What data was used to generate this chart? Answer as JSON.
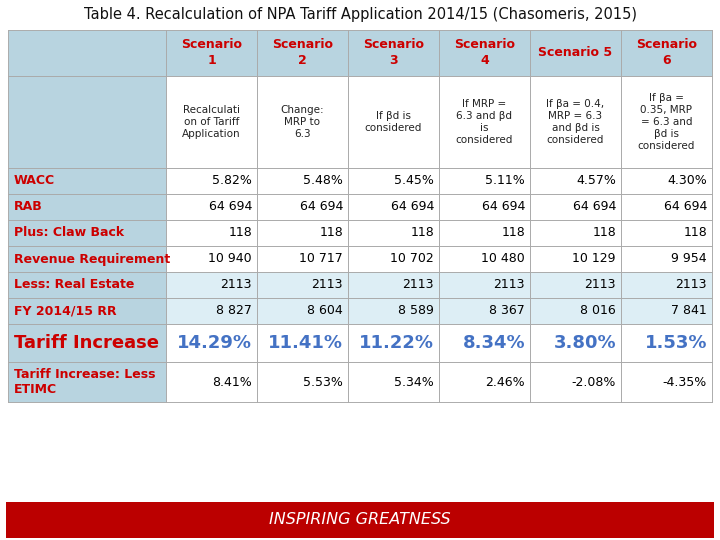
{
  "title": "Table 4. Recalculation of NPA Tariff Application 2014/15 (Chasomeris, 2015)",
  "footer": "INSPIRING GREATNESS",
  "header_labels": [
    "Scenario\n1",
    "Scenario\n2",
    "Scenario\n3",
    "Scenario\n4",
    "Scenario 5",
    "Scenario\n6"
  ],
  "desc_row": [
    "Recalculati\non of Tariff\nApplication",
    "Change:\nMRP to\n6.3",
    "If βd is\nconsidered",
    "If MRP =\n6.3 and βd\nis\nconsidered",
    "If βa = 0.4,\nMRP = 6.3\nand βd is\nconsidered",
    "If βa =\n0.35, MRP\n= 6.3 and\nβd is\nconsidered"
  ],
  "rows": [
    {
      "label": "WACC",
      "values": [
        "5.82%",
        "5.48%",
        "5.45%",
        "5.11%",
        "4.57%",
        "4.30%"
      ],
      "label_bold": true,
      "label_color": "#cc0000",
      "value_color": "#000000",
      "val_align": "right",
      "big": false
    },
    {
      "label": "RAB",
      "values": [
        "64 694",
        "64 694",
        "64 694",
        "64 694",
        "64 694",
        "64 694"
      ],
      "label_bold": true,
      "label_color": "#cc0000",
      "value_color": "#000000",
      "val_align": "right",
      "big": false
    },
    {
      "label": "Plus: Claw Back",
      "values": [
        "118",
        "118",
        "118",
        "118",
        "118",
        "118"
      ],
      "label_bold": true,
      "label_color": "#cc0000",
      "value_color": "#000000",
      "val_align": "right",
      "big": false
    },
    {
      "label": "Revenue Requirement",
      "values": [
        "10 940",
        "10 717",
        "10 702",
        "10 480",
        "10 129",
        "9 954"
      ],
      "label_bold": true,
      "label_color": "#cc0000",
      "value_color": "#000000",
      "val_align": "right",
      "big": false
    },
    {
      "label": "Less: Real Estate",
      "values": [
        "2113",
        "2113",
        "2113",
        "2113",
        "2113",
        "2113"
      ],
      "label_bold": true,
      "label_color": "#cc0000",
      "value_color": "#000000",
      "val_align": "right",
      "big": false,
      "shaded": true
    },
    {
      "label": "FY 2014/15 RR",
      "values": [
        "8 827",
        "8 604",
        "8 589",
        "8 367",
        "8 016",
        "7 841"
      ],
      "label_bold": true,
      "label_color": "#cc0000",
      "value_color": "#000000",
      "val_align": "right",
      "big": false,
      "shaded": true
    },
    {
      "label": "Tariff Increase",
      "values": [
        "14.29%",
        "11.41%",
        "11.22%",
        "8.34%",
        "3.80%",
        "1.53%"
      ],
      "label_bold": true,
      "label_color": "#cc0000",
      "value_color": "#4472c4",
      "val_align": "right",
      "big": true
    },
    {
      "label": "Tariff Increase: Less\nETIMC",
      "values": [
        "8.41%",
        "5.53%",
        "5.34%",
        "2.46%",
        "-2.08%",
        "-4.35%"
      ],
      "label_bold": true,
      "label_color": "#cc0000",
      "value_color": "#000000",
      "val_align": "right",
      "big": false
    }
  ],
  "col_header_bg": "#b8d4e0",
  "col_header_color": "#cc0000",
  "label_col_bg": "#b8d4e0",
  "desc_col_bg": "#b8d4e0",
  "row_white_bg": "#ffffff",
  "row_light_bg": "#ddeef5",
  "shaded_label_bg": "#b8d4e0",
  "shaded_val_bg": "#ddeef5",
  "footer_bg": "#bb0000",
  "footer_color": "#ffffff"
}
